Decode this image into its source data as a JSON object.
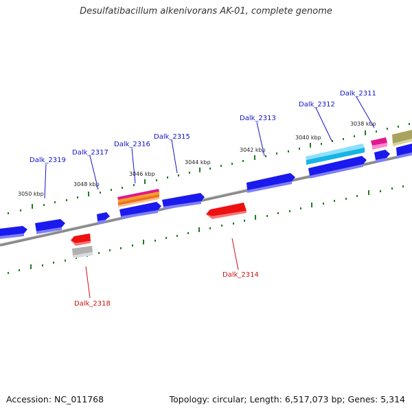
{
  "title": "Desulfatibacillum alkenivorans AK-01, complete genome",
  "accession": "Accession: NC_011768",
  "summary": "Topology: circular; Length: 6,517,073 bp; Genes: 5,314",
  "colors": {
    "backbone": "#888888",
    "forward_gene": "#1a1aee",
    "reverse_gene": "#ee1111",
    "tick": "#1f7a1f",
    "forward_label": "#1010cc",
    "reverse_label": "#cc1111"
  },
  "kbp_ticks": [
    "3050 kbp",
    "3048 kbp",
    "3046 kbp",
    "3044 kbp",
    "3042 kbp",
    "3040 kbp",
    "3038 kbp"
  ],
  "features": {
    "forward": [
      {
        "name": "gene-a",
        "color": "#1a1aee"
      },
      {
        "name": "gene-b",
        "color": "#1a1aee"
      },
      {
        "name": "gene-c",
        "color": "#1a1aee"
      },
      {
        "name": "gene-d",
        "color": "#1a1aee"
      },
      {
        "name": "gene-e",
        "color": "#1a1aee"
      },
      {
        "name": "gene-f",
        "color": "#1a1aee"
      },
      {
        "name": "gene-g",
        "color": "#1a1aee"
      },
      {
        "name": "gene-h",
        "color": "#1a1aee"
      },
      {
        "name": "gene-i",
        "color": "#1a1aee"
      },
      {
        "name": "cyan-feature",
        "color": "#17b4e6"
      },
      {
        "name": "magenta-feature",
        "color": "#e0188c"
      },
      {
        "name": "olive-feature",
        "color": "#a8a460"
      },
      {
        "name": "orange-stack",
        "color": "#f0a020"
      }
    ],
    "reverse": [
      {
        "name": "dalk-2314-feature",
        "color": "#ee1111"
      },
      {
        "name": "dalk-2318-feature",
        "color": "#ee1111"
      },
      {
        "name": "grey-feature",
        "color": "#b0b0b0"
      }
    ]
  },
  "labels": {
    "forward": [
      "Dalk_2319",
      "Dalk_2317",
      "Dalk_2316",
      "Dalk_2315",
      "Dalk_2313",
      "Dalk_2312",
      "Dalk_2311"
    ],
    "reverse": [
      "Dalk_2314",
      "Dalk_2318"
    ]
  }
}
